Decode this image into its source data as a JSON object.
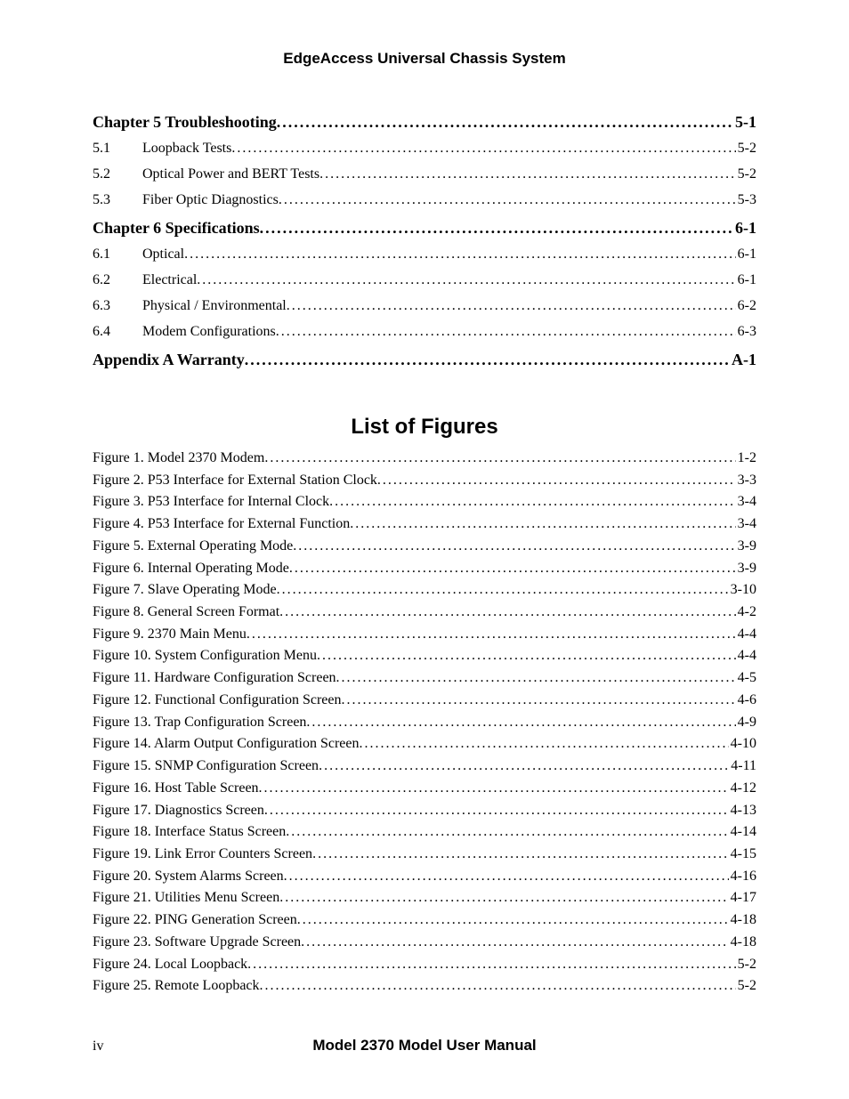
{
  "header": {
    "title": "EdgeAccess Universal Chassis System"
  },
  "toc": {
    "chapters": [
      {
        "label": "Chapter 5 Troubleshooting",
        "page": "5-1",
        "items": [
          {
            "num": "5.1",
            "label": "Loopback Tests",
            "page": "5-2"
          },
          {
            "num": "5.2",
            "label": "Optical Power and BERT Tests",
            "page": "5-2"
          },
          {
            "num": "5.3",
            "label": "Fiber Optic Diagnostics",
            "page": "5-3"
          }
        ]
      },
      {
        "label": "Chapter 6 Specifications",
        "page": "6-1",
        "items": [
          {
            "num": "6.1",
            "label": "Optical",
            "page": "6-1"
          },
          {
            "num": "6.2",
            "label": "Electrical",
            "page": "6-1"
          },
          {
            "num": "6.3",
            "label": "Physical / Environmental",
            "page": "6-2"
          },
          {
            "num": "6.4",
            "label": "Modem Configurations",
            "page": "6-3"
          }
        ]
      },
      {
        "label": "Appendix A Warranty",
        "page": "A-1",
        "items": []
      }
    ]
  },
  "figures": {
    "title": "List of Figures",
    "items": [
      {
        "label": "Figure 1.  Model 2370 Modem",
        "page": "1-2"
      },
      {
        "label": "Figure 2.  P53 Interface for External Station Clock",
        "page": "3-3"
      },
      {
        "label": "Figure 3.  P53 Interface for Internal Clock",
        "page": "3-4"
      },
      {
        "label": "Figure 4.  P53 Interface for External Function",
        "page": "3-4"
      },
      {
        "label": "Figure 5.  External Operating Mode",
        "page": "3-9"
      },
      {
        "label": "Figure 6.  Internal Operating Mode",
        "page": "3-9"
      },
      {
        "label": "Figure 7.  Slave Operating Mode",
        "page": "3-10"
      },
      {
        "label": "Figure 8.  General Screen Format",
        "page": "4-2"
      },
      {
        "label": "Figure 9.  2370 Main Menu",
        "page": "4-4"
      },
      {
        "label": "Figure 10.  System Configuration Menu",
        "page": "4-4"
      },
      {
        "label": "Figure 11.  Hardware Configuration Screen",
        "page": "4-5"
      },
      {
        "label": "Figure 12.  Functional Configuration Screen",
        "page": "4-6"
      },
      {
        "label": "Figure 13.  Trap Configuration Screen",
        "page": "4-9"
      },
      {
        "label": "Figure 14.  Alarm Output Configuration Screen",
        "page": "4-10"
      },
      {
        "label": "Figure 15.  SNMP Configuration Screen",
        "page": "4-11"
      },
      {
        "label": "Figure 16.  Host Table Screen",
        "page": "4-12"
      },
      {
        "label": "Figure 17.  Diagnostics Screen",
        "page": "4-13"
      },
      {
        "label": "Figure 18.  Interface Status Screen",
        "page": "4-14"
      },
      {
        "label": "Figure 19.  Link Error Counters Screen",
        "page": "4-15"
      },
      {
        "label": "Figure 20.  System Alarms Screen",
        "page": "4-16"
      },
      {
        "label": "Figure 21.  Utilities Menu Screen",
        "page": "4-17"
      },
      {
        "label": "Figure 22.  PING Generation Screen",
        "page": "4-18"
      },
      {
        "label": "Figure 23.  Software Upgrade Screen",
        "page": "4-18"
      },
      {
        "label": "Figure 24.  Local Loopback",
        "page": "5-2"
      },
      {
        "label": "Figure 25.  Remote Loopback",
        "page": "5-2"
      }
    ]
  },
  "footer": {
    "page_number": "iv",
    "title": "Model 2370 Model User Manual"
  }
}
